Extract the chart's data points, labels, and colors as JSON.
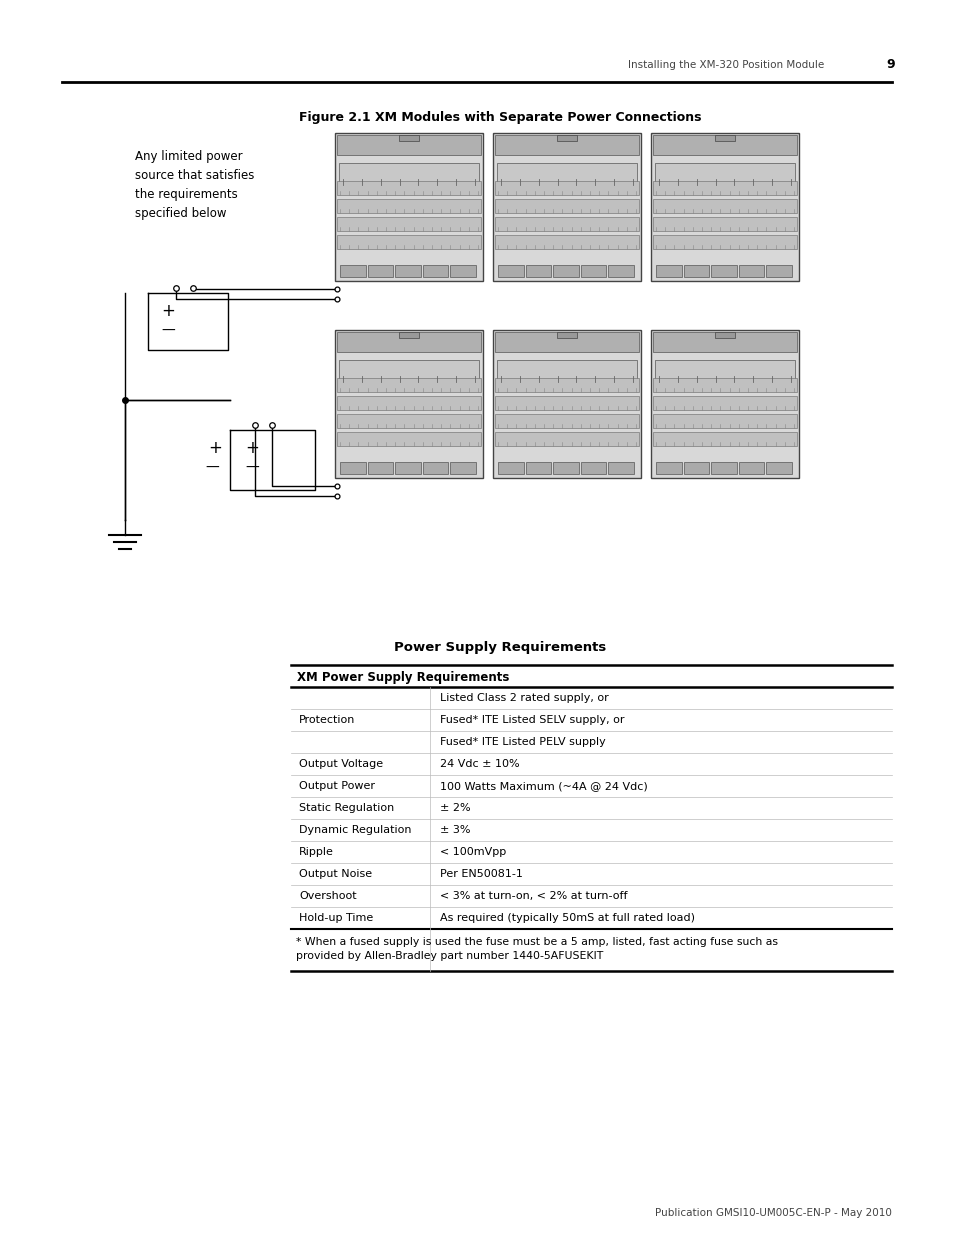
{
  "page_header_text": "Installing the XM-320 Position Module",
  "page_number": "9",
  "figure_title": "Figure 2.1 XM Modules with Separate Power Connections",
  "annotation_text": "Any limited power\nsource that satisfies\nthe requirements\nspecified below",
  "section_title": "Power Supply Requirements",
  "table_header": "XM Power Supply Requirements",
  "table_rows": [
    [
      "Protection",
      "Listed Class 2 rated supply, or"
    ],
    [
      "",
      "Fused* ITE Listed SELV supply, or"
    ],
    [
      "",
      "Fused* ITE Listed PELV supply"
    ],
    [
      "Output Voltage",
      "24 Vdc ± 10%"
    ],
    [
      "Output Power",
      "100 Watts Maximum (~4A @ 24 Vdc)"
    ],
    [
      "Static Regulation",
      "± 2%"
    ],
    [
      "Dynamic Regulation",
      "± 3%"
    ],
    [
      "Ripple",
      "< 100mVpp"
    ],
    [
      "Output Noise",
      "Per EN50081-1"
    ],
    [
      "Overshoot",
      "< 3% at turn-on, < 2% at turn-off"
    ],
    [
      "Hold-up Time",
      "As required (typically 50mS at full rated load)"
    ]
  ],
  "table_footnote": "* When a fused supply is used the fuse must be a 5 amp, listed, fast acting fuse such as\nprovided by Allen-Bradley part number 1440-5AFUSEKIT",
  "footer_text": "Publication GMSI10-UM005C-EN-P - May 2010",
  "background_color": "#ffffff",
  "text_color": "#000000"
}
